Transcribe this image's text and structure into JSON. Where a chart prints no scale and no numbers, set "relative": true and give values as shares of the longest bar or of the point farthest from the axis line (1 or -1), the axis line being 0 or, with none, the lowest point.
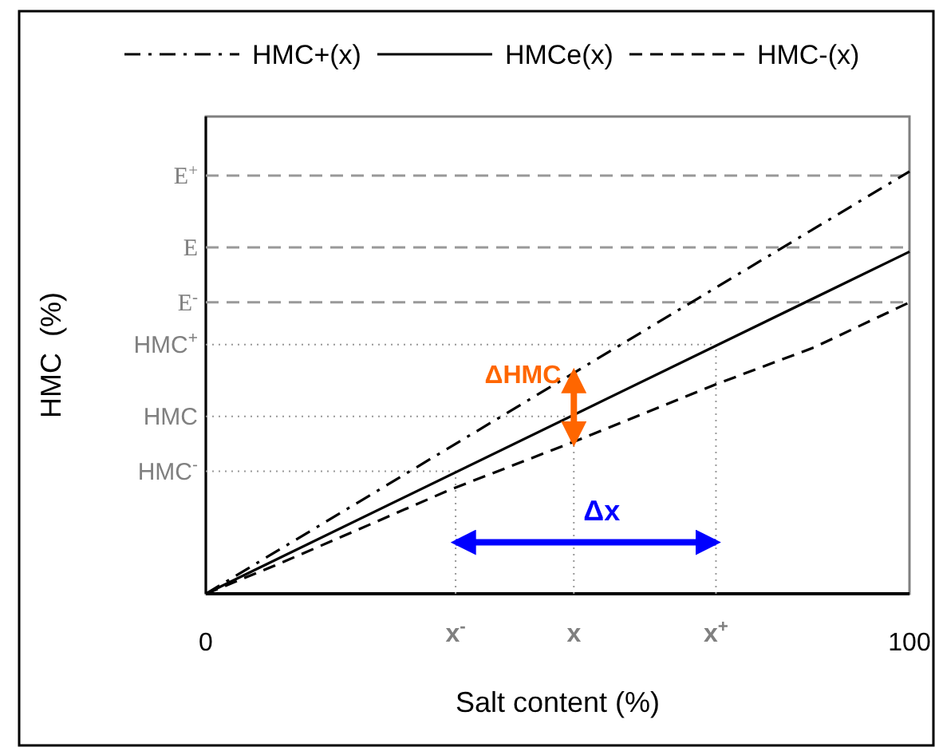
{
  "chart_data": {
    "type": "line",
    "xlabel": "Salt content (%)",
    "ylabel": "HMC  (%)",
    "relative": true,
    "xlim": [
      0,
      100
    ],
    "xticks": [
      0,
      100
    ],
    "legend": "top",
    "grid": false,
    "series": [
      {
        "name": "HMC+(x)",
        "color": "#000000",
        "line_style": "dashdot",
        "x": [
          0,
          100
        ],
        "values": [
          0,
          1
        ]
      },
      {
        "name": "HMCe(x)",
        "color": "#000000",
        "line_style": "solid",
        "x": [
          0,
          100
        ],
        "values": [
          0,
          0.81
        ]
      },
      {
        "name": "HMC-(x)",
        "color": "#000000",
        "line_style": "dashed",
        "x": [
          0,
          9.7,
          19.3,
          34.8,
          52.3,
          72.5,
          86.4,
          100
        ],
        "values": [
          0,
          0.066,
          0.135,
          0.247,
          0.36,
          0.496,
          0.583,
          0.69
        ]
      }
    ],
    "ref_lines": [
      {
        "axis": "y",
        "value": 0.99,
        "label": "E$^{+}$",
        "color": "#999999",
        "line_style": "dashed"
      },
      {
        "axis": "y",
        "value": 0.82,
        "label": "E",
        "color": "#999999",
        "line_style": "dashed"
      },
      {
        "axis": "y",
        "value": 0.69,
        "label": "E$^{-}$",
        "color": "#999999",
        "line_style": "dashed"
      },
      {
        "axis": "y",
        "value": 0.59,
        "label": "HMC$^{+}$",
        "color": "#999999",
        "line_style": "dotted"
      },
      {
        "axis": "y",
        "value": 0.42,
        "label": "HMC",
        "color": "#999999",
        "line_style": "dotted"
      },
      {
        "axis": "y",
        "value": 0.29,
        "label": "HMC$^{-}$",
        "color": "#999999",
        "line_style": "dotted"
      },
      {
        "axis": "x",
        "value": 35.5,
        "label": "x$^{-}$",
        "color": "#999999",
        "line_style": "dotted"
      },
      {
        "axis": "x",
        "value": 52.3,
        "label": "x",
        "color": "#999999",
        "line_style": "dotted"
      },
      {
        "axis": "x",
        "value": 72.5,
        "label": "x$^{+}$",
        "color": "#999999",
        "line_style": "dotted"
      }
    ],
    "annotations": [
      {
        "text": "ΔHMC",
        "x": 52.3,
        "y": 0.53
      },
      "Δx"
    ]
  }
}
